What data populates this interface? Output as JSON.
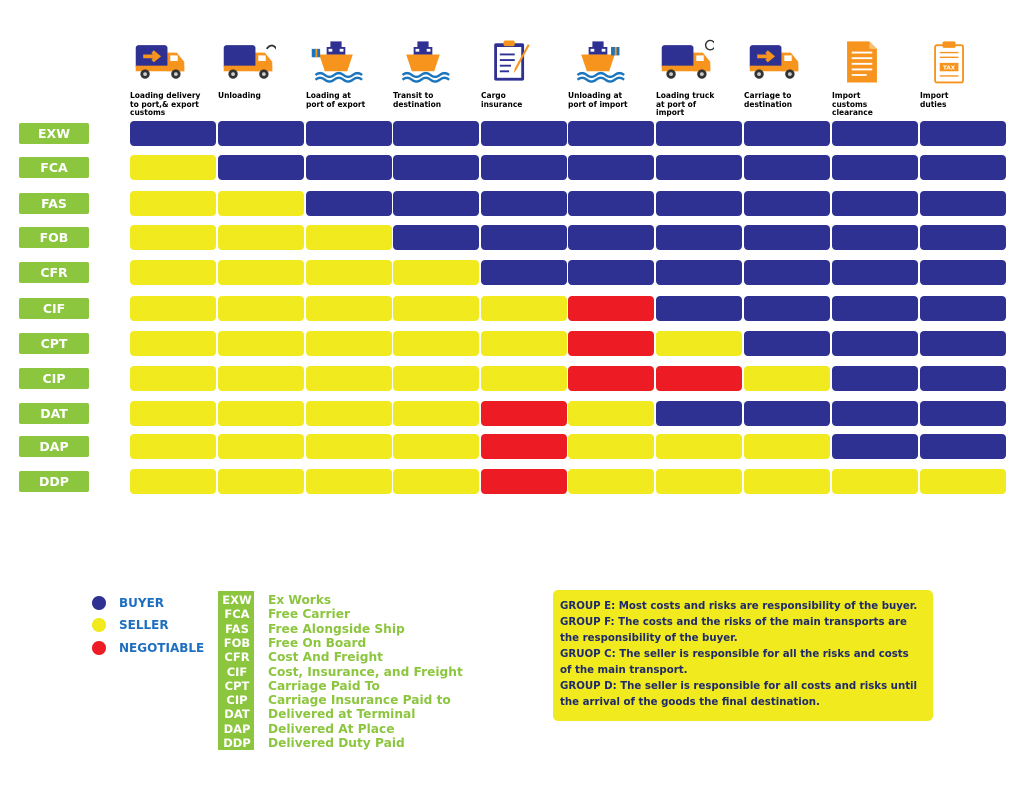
{
  "colors": {
    "buyer": "#2e3192",
    "seller": "#f0ea1f",
    "negotiable": "#ed1c24",
    "group": "#8cc63f"
  },
  "columns": [
    {
      "label": "Loading delivery\nto port,& export\ncustoms",
      "icon": "truck-loading-icon"
    },
    {
      "label": "Unloading",
      "icon": "truck-unloading-icon"
    },
    {
      "label": "Loading at\nport of export",
      "icon": "ship-loading-icon"
    },
    {
      "label": "Transit to\ndestination",
      "icon": "ship-transit-icon"
    },
    {
      "label": "Cargo\ninsurance",
      "icon": "clipboard-insurance-icon"
    },
    {
      "label": "Unloading at\nport of import",
      "icon": "ship-unloading-icon"
    },
    {
      "label": "Loading truck\nat port of\nimport",
      "icon": "truck-loading-import-icon"
    },
    {
      "label": "Carriage to\ndestination",
      "icon": "truck-carriage-icon"
    },
    {
      "label": "Import\ncustoms\nclearance",
      "icon": "customs-document-icon"
    },
    {
      "label": "Import\nduties",
      "icon": "tax-document-icon"
    }
  ],
  "rows": [
    {
      "code": "EXW",
      "cells": [
        "B",
        "B",
        "B",
        "B",
        "B",
        "B",
        "B",
        "B",
        "B",
        "B"
      ]
    },
    {
      "code": "FCA",
      "cells": [
        "S",
        "B",
        "B",
        "B",
        "B",
        "B",
        "B",
        "B",
        "B",
        "B"
      ]
    },
    {
      "code": "FAS",
      "cells": [
        "S",
        "S",
        "B",
        "B",
        "B",
        "B",
        "B",
        "B",
        "B",
        "B"
      ]
    },
    {
      "code": "FOB",
      "cells": [
        "S",
        "S",
        "S",
        "B",
        "B",
        "B",
        "B",
        "B",
        "B",
        "B"
      ]
    },
    {
      "code": "CFR",
      "cells": [
        "S",
        "S",
        "S",
        "S",
        "B",
        "B",
        "B",
        "B",
        "B",
        "B"
      ]
    },
    {
      "code": "CIF",
      "cells": [
        "S",
        "S",
        "S",
        "S",
        "S",
        "N",
        "B",
        "B",
        "B",
        "B"
      ]
    },
    {
      "code": "CPT",
      "cells": [
        "S",
        "S",
        "S",
        "S",
        "S",
        "N",
        "S",
        "B",
        "B",
        "B"
      ]
    },
    {
      "code": "CIP",
      "cells": [
        "S",
        "S",
        "S",
        "S",
        "S",
        "N",
        "N",
        "S",
        "B",
        "B"
      ]
    },
    {
      "code": "DAT",
      "cells": [
        "S",
        "S",
        "S",
        "S",
        "N",
        "S",
        "B",
        "B",
        "B",
        "B"
      ]
    },
    {
      "code": "DAP",
      "cells": [
        "S",
        "S",
        "S",
        "S",
        "N",
        "S",
        "S",
        "S",
        "B",
        "B"
      ]
    },
    {
      "code": "DDP",
      "cells": [
        "S",
        "S",
        "S",
        "S",
        "N",
        "S",
        "S",
        "S",
        "S",
        "S"
      ]
    }
  ],
  "legend": {
    "buyer": "BUYER",
    "seller": "SELLER",
    "negotiable": "NEGOTIABLE"
  },
  "abbreviations": [
    {
      "code": "EXW",
      "name": "Ex Works"
    },
    {
      "code": "FCA",
      "name": "Free Carrier"
    },
    {
      "code": "FAS",
      "name": "Free Alongside Ship"
    },
    {
      "code": "FOB",
      "name": "Free On Board"
    },
    {
      "code": "CFR",
      "name": "Cost And Freight"
    },
    {
      "code": "CIF",
      "name": "Cost, Insurance, and Freight"
    },
    {
      "code": "CPT",
      "name": "Carriage Paid To"
    },
    {
      "code": "CIP",
      "name": "Carriage Insurance Paid to"
    },
    {
      "code": "DAT",
      "name": "Delivered at Terminal"
    },
    {
      "code": "DAP",
      "name": "Delivered At Place"
    },
    {
      "code": "DDP",
      "name": "Delivered Duty Paid"
    }
  ],
  "groups_lines": [
    "GROUP E: Most costs and risks are responsibility of the buyer.",
    "GROUP F: The costs and the risks of the main transports are",
    "the responsibility of the buyer.",
    "GRUOP C: The seller is responsible for all the risks and costs",
    "of the main transport.",
    "GROUP D: The seller is responsible for all costs and risks until",
    "the arrival of the goods the final destination."
  ]
}
